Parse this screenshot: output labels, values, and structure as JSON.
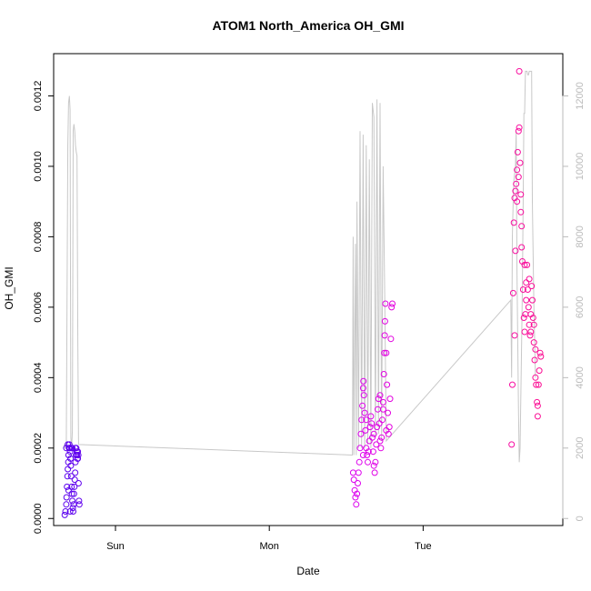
{
  "chart_data": {
    "type": "scatter",
    "title": "ATOM1 North_America OH_GMI",
    "xlabel": "Date",
    "ylabel": "OH_GMI",
    "x_ticks": [
      "Sun",
      "Mon",
      "Tue"
    ],
    "y_ticks": [
      "0.0000",
      "0.0002",
      "0.0004",
      "0.0006",
      "0.0008",
      "0.0010",
      "0.0012"
    ],
    "y2_ticks": [
      "0",
      "2000",
      "4000",
      "6000",
      "8000",
      "10000",
      "12000"
    ],
    "ylim": [
      -2e-05,
      0.00132
    ],
    "y2lim": [
      -200,
      13200
    ],
    "xlim_days": [
      -0.402,
      2.908
    ],
    "colors": {
      "points_start": "#5500ee",
      "points_mid": "#dd00ee",
      "points_end": "#ff1188",
      "altitude_line": "#c8c8c8",
      "axis": "#000000",
      "right_axis": "#bbbbbb"
    },
    "series": [
      {
        "kind": "points",
        "points": [
          [
            -0.33,
            1e-05
          ],
          [
            -0.325,
            2e-05
          ],
          [
            -0.32,
            4e-05
          ],
          [
            -0.318,
            6e-05
          ],
          [
            -0.315,
            9e-05
          ],
          [
            -0.312,
            0.00012
          ],
          [
            -0.31,
            0.00014
          ],
          [
            -0.307,
            0.00016
          ],
          [
            -0.305,
            0.00018
          ],
          [
            -0.302,
            0.0002
          ],
          [
            -0.3,
            0.00021
          ],
          [
            -0.297,
            0.0002
          ],
          [
            -0.295,
            0.00019
          ],
          [
            -0.292,
            0.00017
          ],
          [
            -0.29,
            0.00015
          ],
          [
            -0.288,
            0.00012
          ],
          [
            -0.285,
            9e-05
          ],
          [
            -0.283,
            7e-05
          ],
          [
            -0.28,
            5e-05
          ],
          [
            -0.277,
            3e-05
          ],
          [
            -0.275,
            2e-05
          ],
          [
            -0.272,
            4e-05
          ],
          [
            -0.27,
            7e-05
          ],
          [
            -0.267,
            9e-05
          ],
          [
            -0.265,
            0.00011
          ],
          [
            -0.262,
            0.00013
          ],
          [
            -0.26,
            0.00016
          ],
          [
            -0.257,
            0.00018
          ],
          [
            -0.255,
            0.0002
          ],
          [
            -0.252,
            0.00019
          ],
          [
            -0.25,
            0.00018
          ],
          [
            -0.247,
            0.00017
          ],
          [
            -0.245,
            0.00019
          ],
          [
            -0.242,
            0.00018
          ],
          [
            -0.24,
            0.0001
          ],
          [
            -0.237,
            5e-05
          ],
          [
            -0.235,
            4e-05
          ],
          [
            -0.3,
            0.0002
          ],
          [
            -0.31,
            0.00021
          ],
          [
            -0.32,
            0.0002
          ],
          [
            -0.305,
            8e-05
          ],
          [
            -0.295,
            2e-05
          ],
          [
            -0.26,
            0.0002
          ],
          [
            -0.28,
            0.0002
          ],
          [
            -0.285,
            0.0002
          ],
          [
            -0.245,
            0.00017
          ],
          [
            1.545,
            0.00013
          ],
          [
            1.55,
            0.00011
          ],
          [
            1.555,
            8e-05
          ],
          [
            1.56,
            6e-05
          ],
          [
            1.565,
            4e-05
          ],
          [
            1.57,
            7e-05
          ],
          [
            1.575,
            0.0001
          ],
          [
            1.58,
            0.00013
          ],
          [
            1.585,
            0.00016
          ],
          [
            1.59,
            0.0002
          ],
          [
            1.595,
            0.00024
          ],
          [
            1.6,
            0.00028
          ],
          [
            1.605,
            0.00032
          ],
          [
            1.61,
            0.00037
          ],
          [
            1.612,
            0.00039
          ],
          [
            1.615,
            0.00035
          ],
          [
            1.62,
            0.0003
          ],
          [
            1.625,
            0.00025
          ],
          [
            1.63,
            0.0002
          ],
          [
            1.635,
            0.00018
          ],
          [
            1.64,
            0.00016
          ],
          [
            1.645,
            0.00019
          ],
          [
            1.65,
            0.00022
          ],
          [
            1.655,
            0.00026
          ],
          [
            1.66,
            0.00029
          ],
          [
            1.665,
            0.00027
          ],
          [
            1.67,
            0.00023
          ],
          [
            1.675,
            0.00019
          ],
          [
            1.68,
            0.00015
          ],
          [
            1.685,
            0.00013
          ],
          [
            1.69,
            0.00016
          ],
          [
            1.695,
            0.00021
          ],
          [
            1.7,
            0.00026
          ],
          [
            1.705,
            0.00031
          ],
          [
            1.71,
            0.00034
          ],
          [
            1.715,
            0.00027
          ],
          [
            1.72,
            0.00022
          ],
          [
            1.725,
            0.0002
          ],
          [
            1.73,
            0.00023
          ],
          [
            1.735,
            0.00028
          ],
          [
            1.74,
            0.00033
          ],
          [
            1.745,
            0.00041
          ],
          [
            1.748,
            0.00047
          ],
          [
            1.75,
            0.00052
          ],
          [
            1.752,
            0.00056
          ],
          [
            1.755,
            0.00061
          ],
          [
            1.76,
            0.00047
          ],
          [
            1.765,
            0.00038
          ],
          [
            1.77,
            0.0003
          ],
          [
            1.775,
            0.00024
          ],
          [
            1.78,
            0.00026
          ],
          [
            1.785,
            0.00034
          ],
          [
            1.79,
            0.00051
          ],
          [
            1.795,
            0.0006
          ],
          [
            1.8,
            0.00061
          ],
          [
            1.76,
            0.00025
          ],
          [
            1.61,
            0.00018
          ],
          [
            1.63,
            0.00028
          ],
          [
            1.68,
            0.00024
          ],
          [
            1.72,
            0.00035
          ],
          [
            1.74,
            0.00031
          ],
          [
            2.575,
            0.00021
          ],
          [
            2.58,
            0.00038
          ],
          [
            2.585,
            0.00064
          ],
          [
            2.59,
            0.00084
          ],
          [
            2.595,
            0.00091
          ],
          [
            2.6,
            0.00093
          ],
          [
            2.605,
            0.00095
          ],
          [
            2.61,
            0.00099
          ],
          [
            2.615,
            0.00104
          ],
          [
            2.62,
            0.0011
          ],
          [
            2.625,
            0.00111
          ],
          [
            2.63,
            0.00101
          ],
          [
            2.635,
            0.00092
          ],
          [
            2.64,
            0.00083
          ],
          [
            2.645,
            0.00073
          ],
          [
            2.65,
            0.00065
          ],
          [
            2.655,
            0.00057
          ],
          [
            2.66,
            0.00053
          ],
          [
            2.665,
            0.00058
          ],
          [
            2.67,
            0.00067
          ],
          [
            2.675,
            0.00072
          ],
          [
            2.68,
            0.00065
          ],
          [
            2.685,
            0.0006
          ],
          [
            2.69,
            0.00055
          ],
          [
            2.695,
            0.00052
          ],
          [
            2.7,
            0.00058
          ],
          [
            2.705,
            0.00066
          ],
          [
            2.71,
            0.00062
          ],
          [
            2.715,
            0.00057
          ],
          [
            2.72,
            0.0005
          ],
          [
            2.725,
            0.00045
          ],
          [
            2.73,
            0.0004
          ],
          [
            2.735,
            0.00038
          ],
          [
            2.74,
            0.00033
          ],
          [
            2.745,
            0.00029
          ],
          [
            2.75,
            0.00038
          ],
          [
            2.755,
            0.00042
          ],
          [
            2.76,
            0.00047
          ],
          [
            2.765,
            0.00046
          ],
          [
            2.61,
            0.0009
          ],
          [
            2.62,
            0.00097
          ],
          [
            2.625,
            0.00127
          ],
          [
            2.635,
            0.00087
          ],
          [
            2.64,
            0.00077
          ],
          [
            2.6,
            0.00076
          ],
          [
            2.595,
            0.00052
          ],
          [
            2.66,
            0.00072
          ],
          [
            2.67,
            0.00062
          ],
          [
            2.69,
            0.00068
          ],
          [
            2.7,
            0.00053
          ],
          [
            2.72,
            0.00055
          ],
          [
            2.73,
            0.00048
          ],
          [
            2.745,
            0.00032
          ]
        ]
      },
      {
        "kind": "line",
        "axis": "right",
        "points": [
          [
            -0.335,
            2100
          ],
          [
            -0.33,
            2000
          ],
          [
            -0.32,
            2000
          ],
          [
            -0.315,
            6000
          ],
          [
            -0.31,
            10600
          ],
          [
            -0.305,
            11800
          ],
          [
            -0.3,
            12000
          ],
          [
            -0.295,
            11600
          ],
          [
            -0.29,
            2300
          ],
          [
            -0.285,
            2000
          ],
          [
            -0.28,
            2500
          ],
          [
            -0.275,
            11000
          ],
          [
            -0.27,
            11200
          ],
          [
            -0.265,
            11000
          ],
          [
            -0.26,
            10600
          ],
          [
            -0.255,
            10400
          ],
          [
            -0.25,
            10300
          ],
          [
            -0.245,
            5000
          ],
          [
            -0.24,
            2100
          ],
          [
            1.54,
            1800
          ],
          [
            1.545,
            8000
          ],
          [
            1.55,
            1800
          ],
          [
            1.56,
            7800
          ],
          [
            1.565,
            1800
          ],
          [
            1.57,
            9000
          ],
          [
            1.58,
            2000
          ],
          [
            1.59,
            11000
          ],
          [
            1.6,
            2000
          ],
          [
            1.61,
            10900
          ],
          [
            1.62,
            2000
          ],
          [
            1.63,
            10600
          ],
          [
            1.64,
            2100
          ],
          [
            1.65,
            10200
          ],
          [
            1.66,
            2000
          ],
          [
            1.67,
            11800
          ],
          [
            1.68,
            11400
          ],
          [
            1.69,
            2300
          ],
          [
            1.7,
            11900
          ],
          [
            1.71,
            2400
          ],
          [
            1.72,
            11800
          ],
          [
            1.73,
            2200
          ],
          [
            1.74,
            10000
          ],
          [
            1.75,
            6400
          ],
          [
            1.76,
            2200
          ],
          [
            2.57,
            6200
          ],
          [
            2.575,
            4000
          ],
          [
            2.58,
            8000
          ],
          [
            2.585,
            9000
          ],
          [
            2.59,
            9600
          ],
          [
            2.6,
            10000
          ],
          [
            2.605,
            11000
          ],
          [
            2.61,
            7000
          ],
          [
            2.62,
            3000
          ],
          [
            2.625,
            1600
          ],
          [
            2.63,
            2000
          ],
          [
            2.64,
            5000
          ],
          [
            2.645,
            6500
          ],
          [
            2.65,
            9000
          ],
          [
            2.655,
            11500
          ],
          [
            2.66,
            11500
          ],
          [
            2.665,
            12700
          ],
          [
            2.67,
            12700
          ],
          [
            2.675,
            12700
          ],
          [
            2.68,
            12600
          ],
          [
            2.685,
            12600
          ],
          [
            2.69,
            12700
          ],
          [
            2.7,
            12700
          ],
          [
            2.705,
            12700
          ],
          [
            2.71,
            9000
          ],
          [
            2.72,
            6000
          ],
          [
            2.73,
            4000
          ]
        ]
      }
    ]
  }
}
